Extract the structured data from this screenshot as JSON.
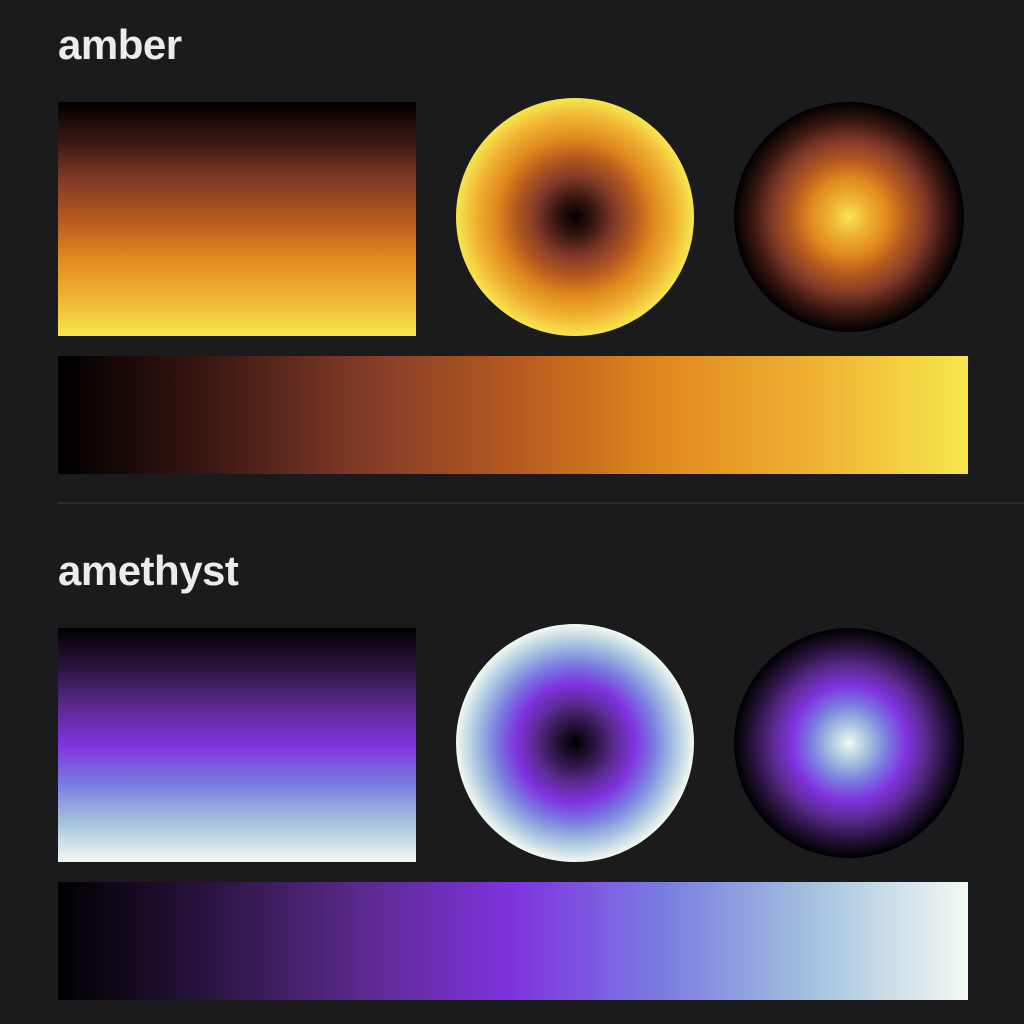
{
  "palettes": [
    {
      "name": "amber",
      "stops": [
        "#000000",
        "#3a1712",
        "#813a28",
        "#b4591f",
        "#e08a1e",
        "#f0b232",
        "#f7e64e"
      ]
    },
    {
      "name": "amethyst",
      "stops": [
        "#000000",
        "#2a1440",
        "#5b2a8e",
        "#7f33e0",
        "#7a7de0",
        "#a6c3df",
        "#f3f9f1"
      ]
    }
  ]
}
